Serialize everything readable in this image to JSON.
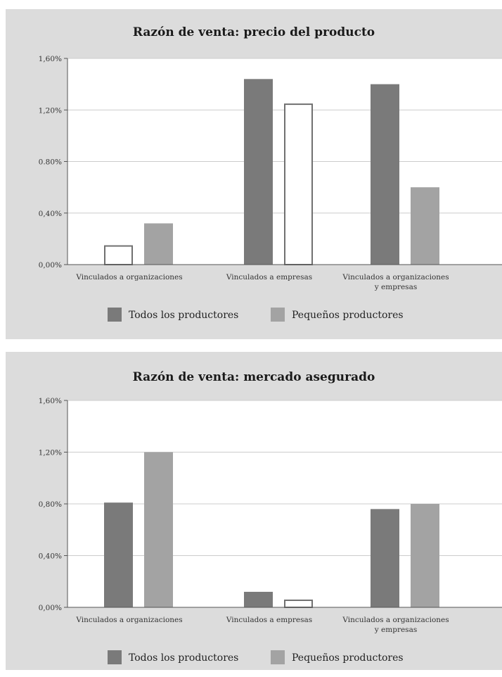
{
  "chart_data": [
    {
      "type": "bar",
      "title": "Razón de venta: precio del producto",
      "categories": [
        [
          "Vinculados a organizaciones"
        ],
        [
          "Vinculados a empresas"
        ],
        [
          "Vinculados a organizaciones",
          "y empresas"
        ]
      ],
      "series": [
        {
          "name": "Todos los productores",
          "values": [
            0.15,
            1.44,
            1.4
          ],
          "outlined": [
            true,
            false,
            false
          ]
        },
        {
          "name": "Pequeños productores",
          "values": [
            0.32,
            1.25,
            0.6
          ],
          "outlined": [
            false,
            true,
            false
          ]
        }
      ],
      "ylim": [
        0,
        1.6
      ],
      "yticks": [
        "0,00%",
        "0,40%",
        "0.80%",
        "1,20%",
        "1,60%"
      ],
      "grid": true,
      "legend_position": "bottom",
      "colors": {
        "series0": "#7a7a7a",
        "series1": "#a3a3a3",
        "outline": "#707070",
        "grid": "#cccccc",
        "panel": "#dcdcdc"
      }
    },
    {
      "type": "bar",
      "title": "Razón de venta: mercado asegurado",
      "categories": [
        [
          "Vinculados a organizaciones"
        ],
        [
          "Vinculados a empresas"
        ],
        [
          "Vinculados a organizaciones",
          "y empresas"
        ]
      ],
      "series": [
        {
          "name": "Todos los productores",
          "values": [
            0.81,
            0.12,
            0.76
          ],
          "outlined": [
            false,
            false,
            false
          ]
        },
        {
          "name": "Pequeños productores",
          "values": [
            1.2,
            0.06,
            0.8
          ],
          "outlined": [
            false,
            true,
            false
          ]
        }
      ],
      "ylim": [
        0,
        1.6
      ],
      "yticks": [
        "0,00%",
        "0,40%",
        "0,80%",
        "1,20%",
        "1,60%"
      ],
      "grid": true,
      "legend_position": "bottom",
      "colors": {
        "series0": "#7a7a7a",
        "series1": "#a3a3a3",
        "outline": "#707070",
        "grid": "#cccccc",
        "panel": "#dcdcdc"
      }
    }
  ]
}
